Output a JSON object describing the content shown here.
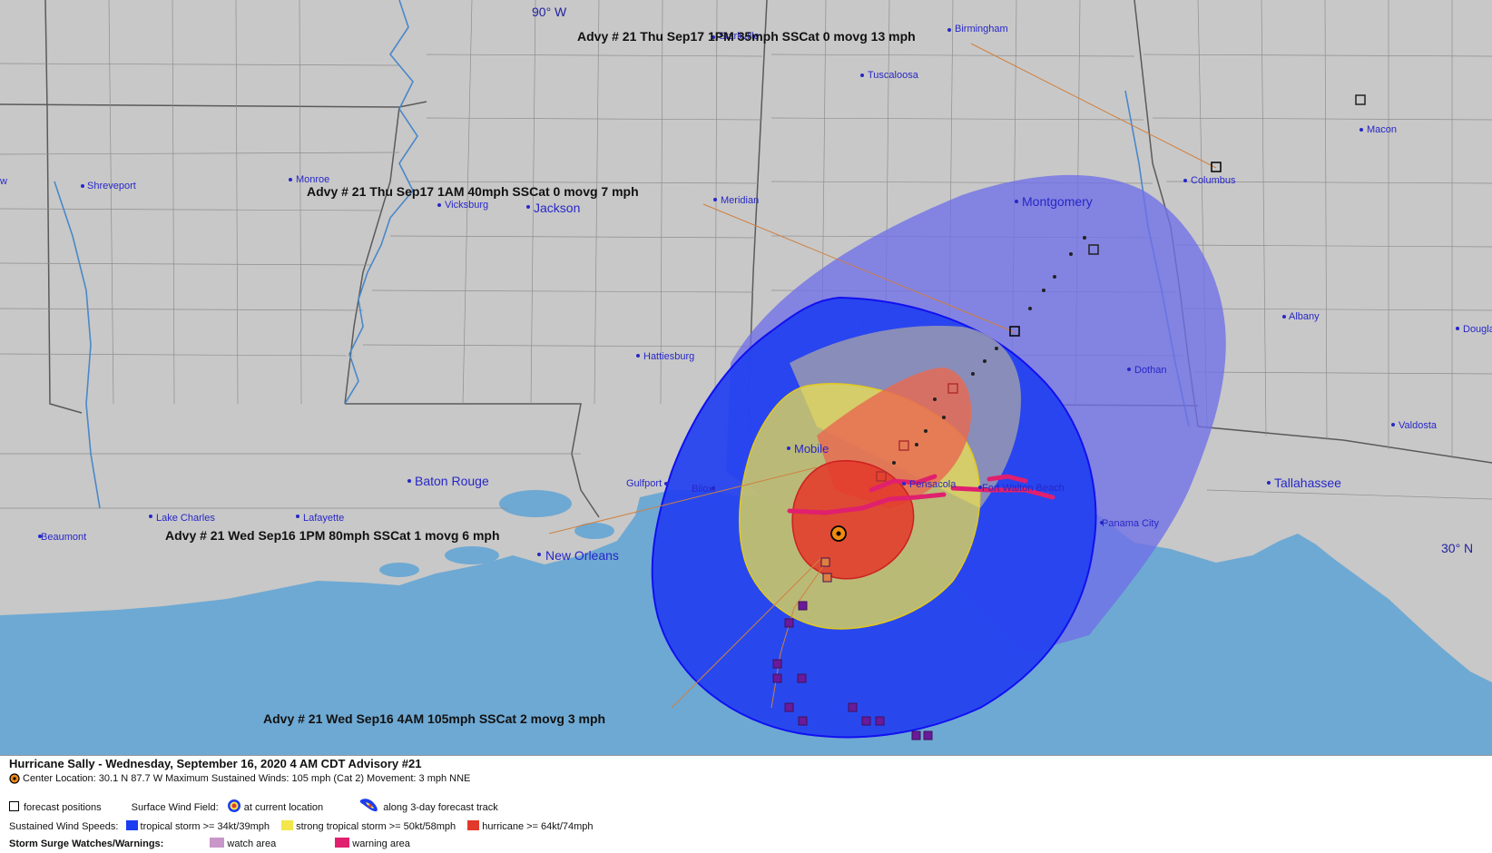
{
  "map": {
    "latlon_labels": [
      "90° W",
      "30° N"
    ],
    "cities": {
      "birmingham": "Birmingham",
      "starkville": "Starkville",
      "tuscaloosa": "Tuscaloosa",
      "macon": "Macon",
      "columbus": "Columbus",
      "montgomery": "Montgomery",
      "shreveport": "Shreveport",
      "monroe": "Monroe",
      "vicksburg": "Vicksburg",
      "jackson": "Jackson",
      "meridian": "Meridian",
      "albany": "Albany",
      "douglas": "Douglas",
      "hattiesburg": "Hattiesburg",
      "dothan": "Dothan",
      "valdosta": "Valdosta",
      "mobile": "Mobile",
      "baton_rouge": "Baton Rouge",
      "gulfport": "Gulfport",
      "biloxi": "Biloxi",
      "pensacola": "Pensacola",
      "fort_walton_beach": "Fort Walton Beach",
      "tallahassee": "Tallahassee",
      "lake_charles": "Lake Charles",
      "lafayette": "Lafayette",
      "panama_city": "Panama City",
      "beaumont": "Beaumont",
      "new_orleans": "New Orleans",
      "edge_w": "w"
    },
    "advisories": [
      "Advy # 21 Thu Sep17 1PM  35mph SSCat 0 movg 13 mph",
      "Advy # 21 Thu Sep17 1AM  40mph SSCat 0 movg 7 mph",
      "Advy # 21 Wed Sep16 1PM  80mph SSCat 1 movg 6 mph",
      "Advy # 21 Wed Sep16 4AM  105mph SSCat 2 movg 3 mph"
    ],
    "colors": {
      "land": "#c8c8c8",
      "water": "#6ea9d3",
      "tropical_storm": "#1c3cf0",
      "strong_tropical_storm": "#f2e64a",
      "hurricane": "#e23a2a",
      "storm_surge_warning": "#e0206e",
      "storm_surge_watch": "#c896c8",
      "leader_line": "#d08040"
    }
  },
  "legend": {
    "title": "Hurricane Sally  -  Wednesday, September 16, 2020  4 AM CDT   Advisory #21",
    "center_line": "Center Location: 30.1 N  87.7 W   Maximum Sustained Winds: 105 mph (Cat 2) Movement: 3 mph NNE",
    "forecast_positions": "forecast positions",
    "surface_wind_field": "Surface Wind Field:",
    "at_current_location": "at current location",
    "along_track": "along 3-day forecast track",
    "sustained_wind_speeds": "Sustained Wind Speeds:",
    "tropical_storm": "tropical storm >= 34kt/39mph",
    "strong_tropical_storm": "strong tropical storm >= 50kt/58mph",
    "hurricane": "hurricane >= 64kt/74mph",
    "storm_surge": "Storm Surge Watches/Warnings:",
    "watch_area": "watch area",
    "warning_area": "warning area"
  }
}
